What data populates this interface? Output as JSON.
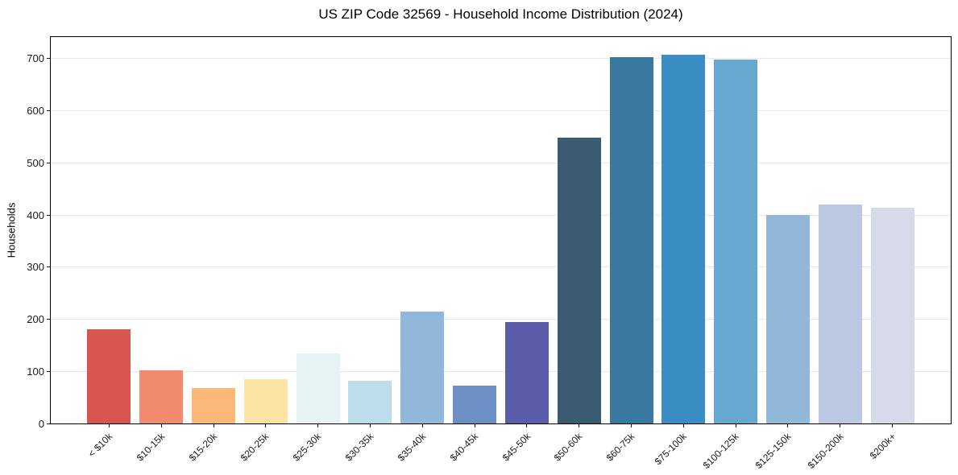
{
  "chart_data": {
    "type": "bar",
    "title": "US ZIP Code 32569 - Household Income Distribution (2024)",
    "xlabel": "",
    "ylabel": "Households",
    "categories": [
      "< $10k",
      "$10-15k",
      "$15-20k",
      "$20-25k",
      "$25-30k",
      "$30-35k",
      "$35-40k",
      "$40-45k",
      "$45-50k",
      "$50-60k",
      "$60-75k",
      "$75-100k",
      "$100-125k",
      "$125-150k",
      "$150-200k",
      "$200k+"
    ],
    "values": [
      181,
      101,
      68,
      85,
      134,
      81,
      215,
      72,
      194,
      548,
      702,
      706,
      697,
      400,
      420,
      413
    ],
    "bar_colors": [
      "#d8564e",
      "#f28b6d",
      "#f9ba79",
      "#fce5a4",
      "#e6f2f3",
      "#bddded",
      "#8fb8db",
      "#6c90c5",
      "#5b5dab",
      "#3b5c70",
      "#3979a0",
      "#3a8ec3",
      "#66a8cf",
      "#92b8d8",
      "#bac9e1",
      "#d7dae8"
    ],
    "yticks": [
      0,
      100,
      200,
      300,
      400,
      500,
      600,
      700
    ],
    "ylim": [
      0,
      743
    ],
    "grid": "horizontal",
    "legend_position": "none",
    "background_color": "#ffffff",
    "frame_color": "#000000",
    "grid_color": "#e7e7ea",
    "tick_text_color": "#1a1a1a"
  }
}
